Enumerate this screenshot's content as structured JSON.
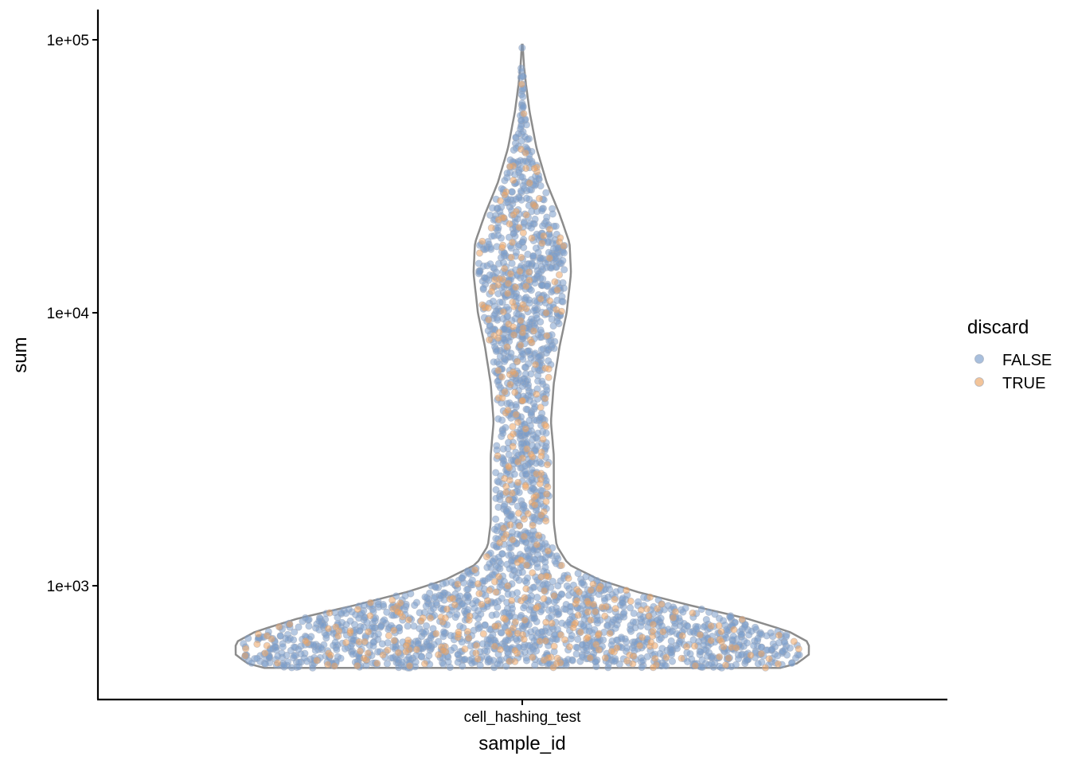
{
  "chart_data": {
    "type": "scatter",
    "subtype": "violin-with-jittered-points",
    "title": "",
    "xlabel": "sample_id",
    "ylabel": "sum",
    "categories": [
      "cell_hashing_test"
    ],
    "y_scale": "log10",
    "ylim": [
      470,
      100000
    ],
    "y_ticks": [
      {
        "value": 1000,
        "label": "1e+03"
      },
      {
        "value": 10000,
        "label": "1e+04"
      },
      {
        "value": 100000,
        "label": "1e+05"
      }
    ],
    "grid": false,
    "legend_position": "right",
    "legend": {
      "title": "discard",
      "entries": [
        {
          "label": "FALSE",
          "color": "#7A9CCB"
        },
        {
          "label": "TRUE",
          "color": "#EDA462"
        }
      ]
    },
    "violin": {
      "category": "cell_hashing_test",
      "outline_color": "#8C8C8C",
      "min": 500,
      "max": 96000,
      "density_profile": [
        {
          "y": 500,
          "density": 0.9
        },
        {
          "y": 520,
          "density": 0.96
        },
        {
          "y": 560,
          "density": 1.0
        },
        {
          "y": 620,
          "density": 1.0
        },
        {
          "y": 680,
          "density": 0.93
        },
        {
          "y": 760,
          "density": 0.78
        },
        {
          "y": 850,
          "density": 0.58
        },
        {
          "y": 950,
          "density": 0.4
        },
        {
          "y": 1050,
          "density": 0.27
        },
        {
          "y": 1200,
          "density": 0.16
        },
        {
          "y": 1400,
          "density": 0.12
        },
        {
          "y": 1700,
          "density": 0.11
        },
        {
          "y": 2200,
          "density": 0.11
        },
        {
          "y": 3000,
          "density": 0.11
        },
        {
          "y": 4000,
          "density": 0.1
        },
        {
          "y": 5500,
          "density": 0.11
        },
        {
          "y": 7500,
          "density": 0.13
        },
        {
          "y": 10000,
          "density": 0.155
        },
        {
          "y": 14000,
          "density": 0.17
        },
        {
          "y": 18000,
          "density": 0.165
        },
        {
          "y": 23000,
          "density": 0.13
        },
        {
          "y": 30000,
          "density": 0.085
        },
        {
          "y": 40000,
          "density": 0.05
        },
        {
          "y": 55000,
          "density": 0.025
        },
        {
          "y": 70000,
          "density": 0.012
        },
        {
          "y": 80000,
          "density": 0.006
        },
        {
          "y": 90000,
          "density": 0.003
        },
        {
          "y": 96000,
          "density": 0.001
        }
      ]
    },
    "series": [
      {
        "name": "FALSE",
        "color": "#7A9CCB",
        "point_count": 2400
      },
      {
        "name": "TRUE",
        "color": "#EDA462",
        "point_count": 420
      }
    ]
  }
}
